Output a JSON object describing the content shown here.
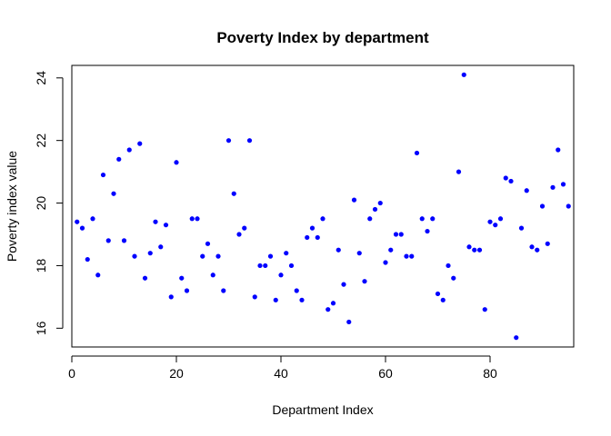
{
  "chart_data": {
    "type": "scatter",
    "title": "Poverty Index by department",
    "xlabel": "Department Index",
    "ylabel": "Poverty index value",
    "xlim": [
      0,
      96
    ],
    "ylim": [
      15.4,
      24.4
    ],
    "x_ticks": [
      0,
      20,
      40,
      60,
      80
    ],
    "y_ticks": [
      16,
      18,
      20,
      22,
      24
    ],
    "x_tick_labels": [
      "0",
      "20",
      "40",
      "60",
      "80"
    ],
    "y_tick_labels": [
      "16",
      "18",
      "20",
      "22",
      "24"
    ],
    "grid": false,
    "legend": "none",
    "point_color": "#0000ff",
    "x": [
      1,
      2,
      3,
      4,
      5,
      6,
      7,
      8,
      9,
      10,
      11,
      12,
      13,
      14,
      15,
      16,
      17,
      18,
      19,
      20,
      21,
      22,
      23,
      24,
      25,
      26,
      27,
      28,
      29,
      30,
      31,
      32,
      33,
      34,
      35,
      36,
      37,
      38,
      39,
      40,
      41,
      42,
      43,
      44,
      45,
      46,
      47,
      48,
      49,
      50,
      51,
      52,
      53,
      54,
      55,
      56,
      57,
      58,
      59,
      60,
      61,
      62,
      63,
      64,
      65,
      66,
      67,
      68,
      69,
      70,
      71,
      72,
      73,
      74,
      75,
      76,
      77,
      78,
      79,
      80,
      81,
      82,
      83,
      84,
      85,
      86,
      87,
      88,
      89,
      90,
      91,
      92,
      93,
      94,
      95
    ],
    "y": [
      19.4,
      19.2,
      18.2,
      19.5,
      17.7,
      20.9,
      18.8,
      20.3,
      21.4,
      18.8,
      21.7,
      18.3,
      21.9,
      17.6,
      18.4,
      19.4,
      18.6,
      19.3,
      17.0,
      21.3,
      17.6,
      17.2,
      19.5,
      19.5,
      18.3,
      18.7,
      17.7,
      18.3,
      17.2,
      22.0,
      20.3,
      19.0,
      19.2,
      22.0,
      17.0,
      18.0,
      18.0,
      18.3,
      16.9,
      17.7,
      18.4,
      18.0,
      17.2,
      16.9,
      18.9,
      19.2,
      18.9,
      19.5,
      16.6,
      16.8,
      18.5,
      17.4,
      16.2,
      20.1,
      18.4,
      17.5,
      19.5,
      19.8,
      20.0,
      18.1,
      18.5,
      19.0,
      19.0,
      18.3,
      18.3,
      21.6,
      19.5,
      19.1,
      19.5,
      17.1,
      16.9,
      18.0,
      17.6,
      21.0,
      24.1,
      18.6,
      18.5,
      18.5,
      16.6,
      19.4,
      19.3,
      19.5,
      20.8,
      20.7,
      15.7,
      19.2,
      20.4,
      18.6,
      18.5,
      19.9,
      18.7,
      20.5,
      21.7,
      20.6,
      19.9
    ]
  }
}
